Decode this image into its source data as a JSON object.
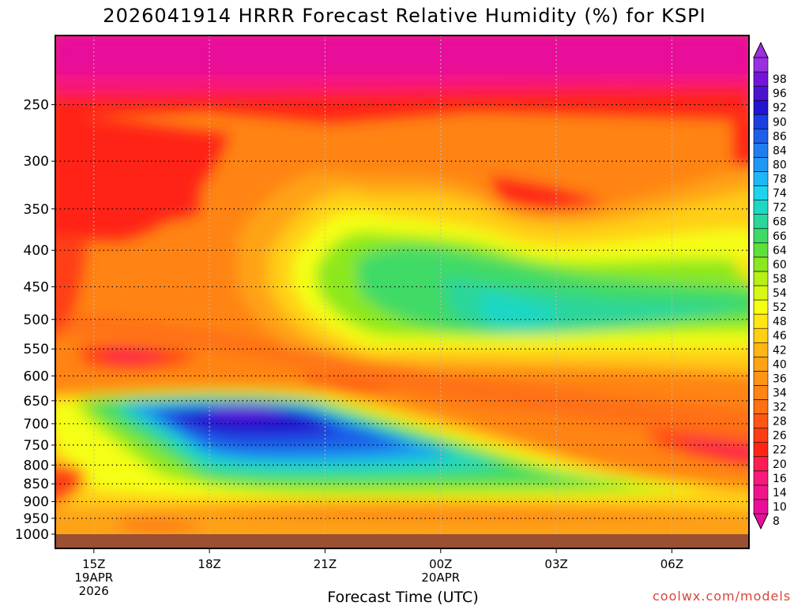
{
  "colors": {
    "cbar_colors": [
      "#e8109a",
      "#f2158a",
      "#f7197b",
      "#fc1e52",
      "#ff2314",
      "#ff3c14",
      "#ff5714",
      "#ff6f14",
      "#ff8414",
      "#ff9514",
      "#ffa314",
      "#ffb514",
      "#ffcf14",
      "#ffe614",
      "#f5ff14",
      "#d8f814",
      "#b7f014",
      "#8ce81e",
      "#5ee039",
      "#3fda66",
      "#2ad69a",
      "#1fd8c4",
      "#1dd4ee",
      "#1fb8f5",
      "#1f98f5",
      "#1f7df0",
      "#1e5ee8",
      "#1c3fe0",
      "#2214d0",
      "#4b14d0",
      "#7414d8",
      "#9a30e0"
    ],
    "ground": "#9b5032",
    "frame": "#000000"
  },
  "chart_data": {
    "type": "heatmap",
    "title": "2026041914 HRRR Forecast Relative Humidity (%) for KSPI",
    "xlabel": "Forecast Time (UTC)",
    "x_ticks": [
      {
        "label": "15Z",
        "sub1": "19APR",
        "sub2": "2026",
        "hour": 15
      },
      {
        "label": "18Z",
        "sub1": "",
        "sub2": "",
        "hour": 18
      },
      {
        "label": "21Z",
        "sub1": "",
        "sub2": "",
        "hour": 21
      },
      {
        "label": "00Z",
        "sub1": "20APR",
        "sub2": "",
        "hour": 24
      },
      {
        "label": "03Z",
        "sub1": "",
        "sub2": "",
        "hour": 27
      },
      {
        "label": "06Z",
        "sub1": "",
        "sub2": "",
        "hour": 30
      }
    ],
    "x_range": [
      14,
      32
    ],
    "y_ticks": [
      250,
      300,
      350,
      400,
      450,
      500,
      550,
      600,
      650,
      700,
      750,
      800,
      850,
      900,
      950,
      1000
    ],
    "y_range": [
      200,
      1000
    ],
    "y_scale": "log, reversed (pressure hPa)",
    "colorbar_levels": [
      8,
      10,
      14,
      16,
      20,
      22,
      26,
      28,
      32,
      34,
      36,
      40,
      42,
      46,
      48,
      52,
      54,
      58,
      60,
      64,
      66,
      68,
      72,
      74,
      78,
      80,
      84,
      86,
      90,
      92,
      96,
      98
    ],
    "grid": true,
    "credit": "coolwx.com/models"
  }
}
